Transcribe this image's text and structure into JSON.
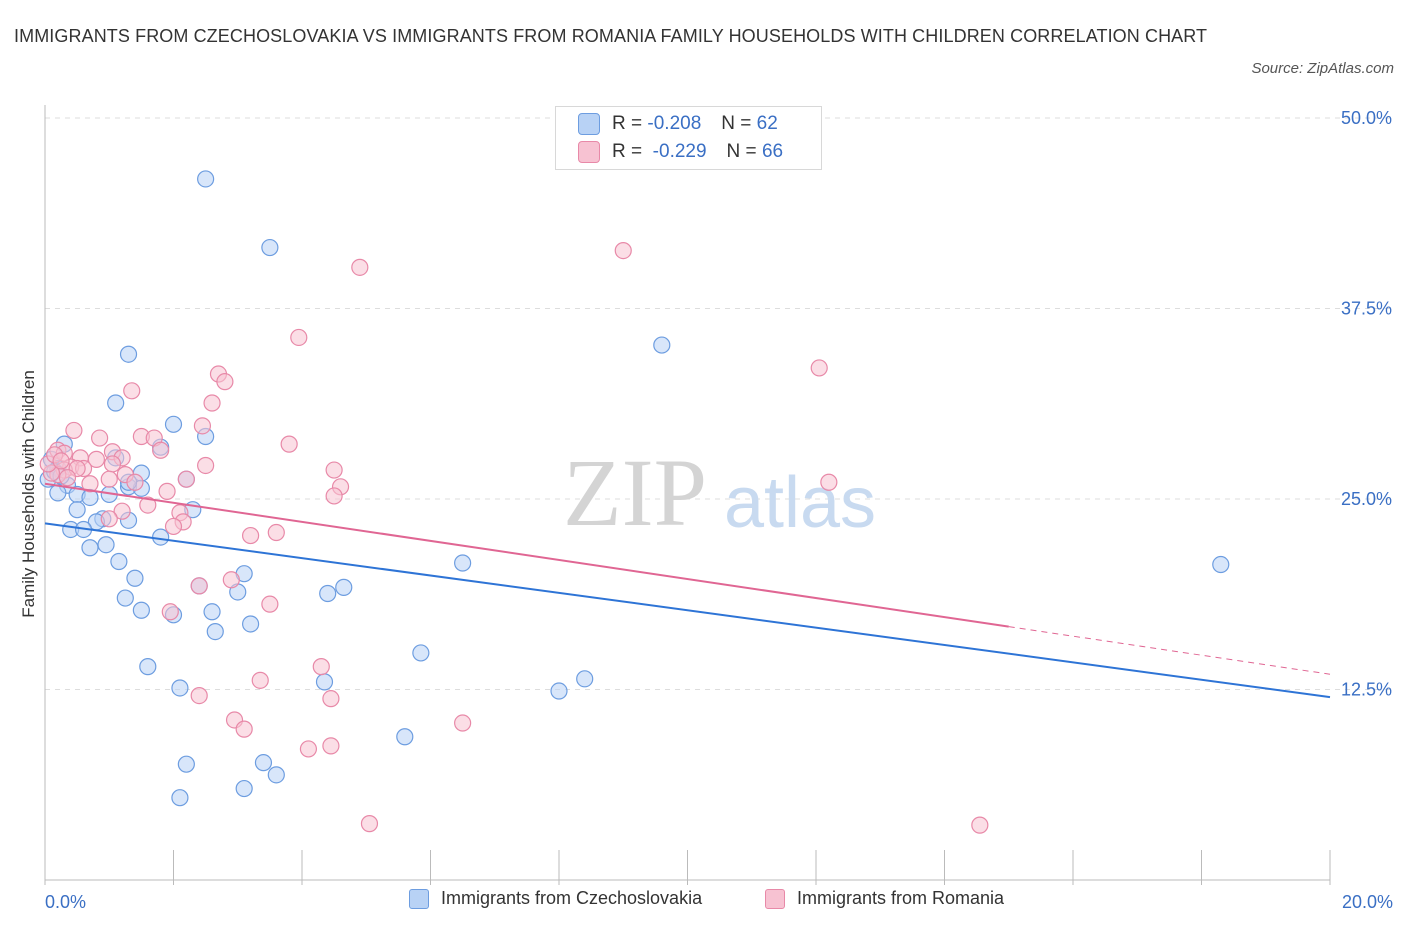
{
  "title": "IMMIGRANTS FROM CZECHOSLOVAKIA VS IMMIGRANTS FROM ROMANIA FAMILY HOUSEHOLDS WITH CHILDREN CORRELATION CHART",
  "source": "Source: ZipAtlas.com",
  "watermark": {
    "zip": "ZIP",
    "atlas": "atlas"
  },
  "colors": {
    "blue_fill": "#b8d2f5",
    "blue_stroke": "#6d9de0",
    "blue_line": "#2e74d6",
    "pink_fill": "#f7c2d2",
    "pink_stroke": "#e889a8",
    "pink_line": "#e06693",
    "tick_label": "#3a6fc4",
    "grid": "#dddddd"
  },
  "legend": {
    "rows": [
      {
        "r_label": "R =",
        "r_value": "-0.208",
        "n_label": "N =",
        "n_value": "62",
        "series": "blue"
      },
      {
        "r_label": "R =",
        "r_value": "-0.229",
        "n_label": "N =",
        "n_value": "66",
        "series": "pink"
      }
    ]
  },
  "bottom_legend": [
    "Immigrants from Czechoslovakia",
    "Immigrants from Romania"
  ],
  "chart_data": {
    "type": "scatter",
    "xlabel": "",
    "ylabel": "Family Households with Children",
    "xlim": [
      0,
      20
    ],
    "ylim": [
      0,
      50
    ],
    "x_tick_labels": [
      {
        "value": 0,
        "label": "0.0%"
      },
      {
        "value": 20,
        "label": "20.0%"
      }
    ],
    "y_tick_labels": [
      {
        "value": 12.5,
        "label": "12.5%"
      },
      {
        "value": 25,
        "label": "25.0%"
      },
      {
        "value": 37.5,
        "label": "37.5%"
      },
      {
        "value": 50,
        "label": "50.0%"
      }
    ],
    "series": [
      {
        "name": "Immigrants from Czechoslovakia",
        "color": "blue",
        "r": -0.208,
        "n": 62,
        "trend": {
          "x0": 0,
          "y0": 23.4,
          "x1": 20,
          "y1": 12.0,
          "solid_to": 20
        },
        "points": [
          [
            2.5,
            46.0
          ],
          [
            3.5,
            41.5
          ],
          [
            1.3,
            34.5
          ],
          [
            9.6,
            35.1
          ],
          [
            1.1,
            31.3
          ],
          [
            2.0,
            29.9
          ],
          [
            2.5,
            29.1
          ],
          [
            0.3,
            28.6
          ],
          [
            1.8,
            28.4
          ],
          [
            0.1,
            27.6
          ],
          [
            0.2,
            27.0
          ],
          [
            1.1,
            27.7
          ],
          [
            1.5,
            26.7
          ],
          [
            2.2,
            26.3
          ],
          [
            0.35,
            25.9
          ],
          [
            1.3,
            25.8
          ],
          [
            1.5,
            25.7
          ],
          [
            0.2,
            25.4
          ],
          [
            0.5,
            25.3
          ],
          [
            0.7,
            25.1
          ],
          [
            1.0,
            25.3
          ],
          [
            0.5,
            24.3
          ],
          [
            2.3,
            24.3
          ],
          [
            1.3,
            23.6
          ],
          [
            0.9,
            23.7
          ],
          [
            0.8,
            23.5
          ],
          [
            0.4,
            23.0
          ],
          [
            0.6,
            23.0
          ],
          [
            1.8,
            22.5
          ],
          [
            0.95,
            22.0
          ],
          [
            0.7,
            21.8
          ],
          [
            1.15,
            20.9
          ],
          [
            6.5,
            20.8
          ],
          [
            18.3,
            20.7
          ],
          [
            3.1,
            20.1
          ],
          [
            1.4,
            19.8
          ],
          [
            2.4,
            19.3
          ],
          [
            4.65,
            19.2
          ],
          [
            4.4,
            18.8
          ],
          [
            3.0,
            18.9
          ],
          [
            1.25,
            18.5
          ],
          [
            1.5,
            17.7
          ],
          [
            2.6,
            17.6
          ],
          [
            2.0,
            17.4
          ],
          [
            3.2,
            16.8
          ],
          [
            2.65,
            16.3
          ],
          [
            5.85,
            14.9
          ],
          [
            1.6,
            14.0
          ],
          [
            8.4,
            13.2
          ],
          [
            4.35,
            13.0
          ],
          [
            2.1,
            12.6
          ],
          [
            8.0,
            12.4
          ],
          [
            5.6,
            9.4
          ],
          [
            2.2,
            7.6
          ],
          [
            3.4,
            7.7
          ],
          [
            3.6,
            6.9
          ],
          [
            3.1,
            6.0
          ],
          [
            2.1,
            5.4
          ],
          [
            0.05,
            26.3
          ],
          [
            0.15,
            26.8
          ],
          [
            0.25,
            26.5
          ],
          [
            1.3,
            26.1
          ]
        ]
      },
      {
        "name": "Immigrants from Romania",
        "color": "pink",
        "r": -0.229,
        "n": 66,
        "trend": {
          "x0": 0,
          "y0": 26.0,
          "x1": 20,
          "y1": 13.5,
          "solid_to": 15.0
        },
        "points": [
          [
            9.0,
            41.3
          ],
          [
            4.9,
            40.2
          ],
          [
            3.95,
            35.6
          ],
          [
            12.05,
            33.6
          ],
          [
            2.7,
            33.2
          ],
          [
            2.8,
            32.7
          ],
          [
            1.35,
            32.1
          ],
          [
            2.6,
            31.3
          ],
          [
            2.45,
            29.8
          ],
          [
            0.45,
            29.5
          ],
          [
            1.5,
            29.1
          ],
          [
            1.7,
            29.0
          ],
          [
            0.85,
            29.0
          ],
          [
            3.8,
            28.6
          ],
          [
            1.8,
            28.2
          ],
          [
            1.05,
            28.1
          ],
          [
            0.2,
            28.2
          ],
          [
            0.3,
            28.0
          ],
          [
            0.55,
            27.7
          ],
          [
            1.2,
            27.7
          ],
          [
            0.8,
            27.6
          ],
          [
            1.05,
            27.3
          ],
          [
            2.5,
            27.2
          ],
          [
            0.4,
            27.1
          ],
          [
            0.6,
            27.0
          ],
          [
            0.3,
            26.9
          ],
          [
            0.5,
            27.0
          ],
          [
            0.2,
            26.6
          ],
          [
            0.1,
            26.7
          ],
          [
            1.25,
            26.6
          ],
          [
            1.0,
            26.3
          ],
          [
            1.4,
            26.1
          ],
          [
            2.2,
            26.3
          ],
          [
            4.5,
            26.9
          ],
          [
            0.7,
            26.0
          ],
          [
            12.2,
            26.1
          ],
          [
            4.6,
            25.8
          ],
          [
            1.9,
            25.5
          ],
          [
            4.5,
            25.2
          ],
          [
            1.6,
            24.6
          ],
          [
            1.2,
            24.2
          ],
          [
            2.1,
            24.1
          ],
          [
            1.0,
            23.7
          ],
          [
            2.15,
            23.5
          ],
          [
            2.0,
            23.2
          ],
          [
            3.6,
            22.8
          ],
          [
            3.2,
            22.6
          ],
          [
            2.9,
            19.7
          ],
          [
            2.4,
            19.3
          ],
          [
            3.5,
            18.1
          ],
          [
            1.95,
            17.6
          ],
          [
            4.3,
            14.0
          ],
          [
            3.35,
            13.1
          ],
          [
            4.45,
            11.9
          ],
          [
            2.4,
            12.1
          ],
          [
            2.95,
            10.5
          ],
          [
            6.5,
            10.3
          ],
          [
            3.1,
            9.9
          ],
          [
            4.45,
            8.8
          ],
          [
            4.1,
            8.6
          ],
          [
            5.05,
            3.7
          ],
          [
            14.55,
            3.6
          ],
          [
            0.05,
            27.3
          ],
          [
            0.15,
            27.9
          ],
          [
            0.35,
            26.4
          ],
          [
            0.25,
            27.5
          ]
        ]
      }
    ]
  }
}
